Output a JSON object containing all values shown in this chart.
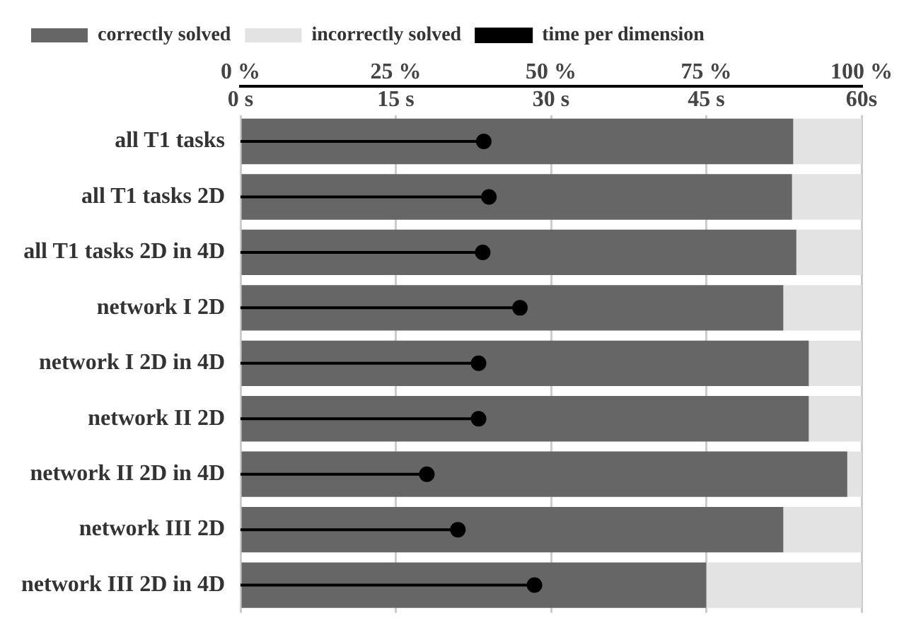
{
  "chart_data": {
    "type": "bar",
    "orientation": "horizontal",
    "stacked": true,
    "categories": [
      "all T1 tasks",
      "all T1 tasks 2D",
      "all T1 tasks 2D in 4D",
      "network I 2D",
      "network I 2D in 4D",
      "network II 2D",
      "network II 2D in 4D",
      "network III 2D",
      "network III 2D in 4D"
    ],
    "series": [
      {
        "name": "correctly solved",
        "color": "#666666",
        "values": [
          89.0,
          88.8,
          89.5,
          87.4,
          91.5,
          91.5,
          97.7,
          87.4,
          75.0
        ]
      },
      {
        "name": "incorrectly solved",
        "color": "#e3e3e3",
        "values": [
          11.0,
          11.2,
          10.5,
          12.6,
          8.5,
          8.5,
          2.3,
          12.6,
          25.0
        ]
      },
      {
        "name": "time per dimension",
        "type": "lollipop",
        "axis": "x2",
        "color": "#000000",
        "values": [
          23.5,
          24.0,
          23.4,
          27.0,
          23.0,
          23.0,
          18.0,
          21.0,
          28.4
        ]
      }
    ],
    "xlim": [
      0,
      100
    ],
    "xticks": [
      {
        "value": 0,
        "label": "0 %"
      },
      {
        "value": 25,
        "label": "25 %"
      },
      {
        "value": 50,
        "label": "50 %"
      },
      {
        "value": 75,
        "label": "75 %"
      },
      {
        "value": 100,
        "label": "100 %"
      }
    ],
    "x2lim": [
      0,
      60
    ],
    "x2ticks": [
      {
        "value": 0,
        "label": "0 s"
      },
      {
        "value": 15,
        "label": "15 s"
      },
      {
        "value": 30,
        "label": "30 s"
      },
      {
        "value": 45,
        "label": "45 s"
      },
      {
        "value": 60,
        "label": "60s"
      }
    ],
    "grid": "x",
    "legend": "top left",
    "marker": "circle"
  }
}
